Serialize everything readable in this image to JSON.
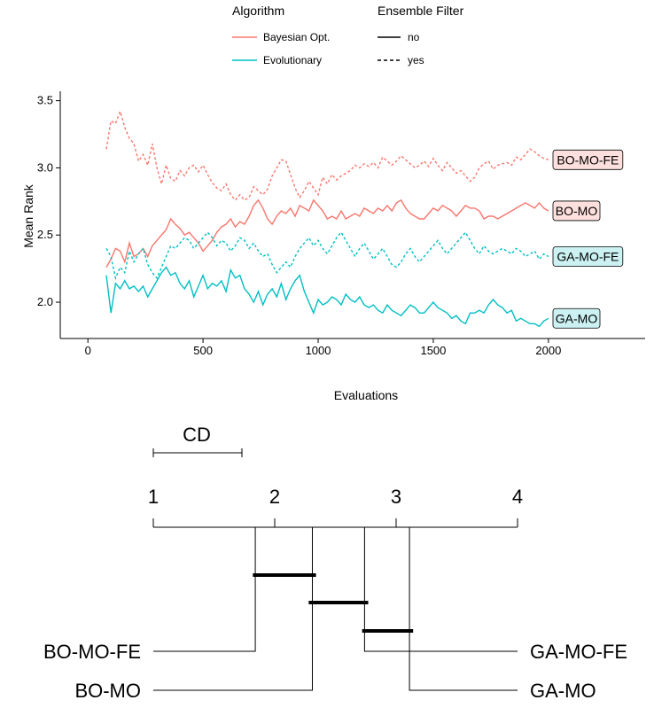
{
  "chart_data": [
    {
      "type": "line",
      "xlabel": "Evaluations",
      "ylabel": "Mean Rank",
      "xlim": [
        -120,
        2420
      ],
      "ylim": [
        1.73,
        3.57
      ],
      "x_ticks": [
        0,
        500,
        1000,
        1500,
        2000
      ],
      "y_ticks": [
        2.0,
        2.5,
        3.0,
        3.5
      ],
      "x_tick_labels": [
        "0",
        "500",
        "1000",
        "1500",
        "2000"
      ],
      "y_tick_labels": [
        "2.0",
        "2.5",
        "3.0",
        "3.5"
      ],
      "grid": false,
      "legend": {
        "placement": "top",
        "groups": [
          {
            "title": "Algorithm",
            "entries": [
              "Bayesian Opt.",
              "Evolutionary"
            ]
          },
          {
            "title": "Ensemble Filter",
            "entries": [
              "no",
              "yes"
            ]
          }
        ]
      },
      "colors": {
        "bayesian": "#F8766D",
        "evolutionary": "#00BFC4",
        "bayesian_fill": "#FDE0DD",
        "evolutionary_fill": "#CCF1F2"
      },
      "series": [
        {
          "name": "BO-MO-FE",
          "algorithm": "Bayesian Opt.",
          "ensemble_filter": "yes",
          "x": [
            80,
            100,
            120,
            140,
            160,
            180,
            200,
            220,
            240,
            260,
            280,
            300,
            320,
            340,
            360,
            380,
            400,
            420,
            440,
            460,
            480,
            500,
            520,
            540,
            560,
            580,
            600,
            620,
            640,
            660,
            680,
            700,
            720,
            740,
            760,
            780,
            800,
            820,
            840,
            860,
            880,
            900,
            920,
            940,
            960,
            980,
            1000,
            1020,
            1040,
            1060,
            1080,
            1100,
            1120,
            1140,
            1160,
            1180,
            1200,
            1220,
            1240,
            1260,
            1280,
            1300,
            1320,
            1340,
            1360,
            1380,
            1400,
            1420,
            1440,
            1460,
            1480,
            1500,
            1520,
            1540,
            1560,
            1580,
            1600,
            1620,
            1640,
            1660,
            1680,
            1700,
            1720,
            1740,
            1760,
            1780,
            1800,
            1820,
            1840,
            1860,
            1880,
            1900,
            1920,
            1940,
            1960,
            1980,
            2000
          ],
          "y": [
            3.14,
            3.35,
            3.33,
            3.42,
            3.3,
            3.22,
            3.18,
            3.05,
            3.1,
            3.02,
            3.18,
            3.0,
            2.88,
            3.02,
            2.92,
            2.9,
            2.98,
            2.94,
            3.0,
            3.02,
            2.97,
            3.02,
            2.95,
            2.89,
            2.85,
            2.83,
            2.88,
            2.8,
            2.76,
            2.8,
            2.76,
            2.78,
            2.86,
            2.83,
            2.8,
            2.84,
            2.94,
            3.0,
            3.06,
            3.05,
            2.95,
            2.85,
            2.78,
            2.83,
            2.9,
            2.85,
            2.8,
            2.93,
            2.88,
            2.95,
            2.91,
            2.94,
            2.96,
            2.98,
            3.02,
            3.0,
            3.03,
            3.01,
            3.04,
            3.0,
            3.08,
            3.05,
            3.02,
            3.05,
            3.09,
            3.06,
            3.03,
            3.0,
            3.02,
            3.05,
            3.01,
            3.07,
            3.02,
            2.98,
            3.04,
            3.0,
            2.96,
            2.98,
            2.94,
            2.9,
            2.93,
            3.0,
            3.03,
            3.05,
            2.99,
            3.02,
            3.03,
            3.04,
            3.02,
            3.08,
            3.06,
            3.1,
            3.14,
            3.12,
            3.09,
            3.07,
            3.06
          ]
        },
        {
          "name": "BO-MO",
          "algorithm": "Bayesian Opt.",
          "ensemble_filter": "no",
          "x": [
            80,
            100,
            120,
            140,
            160,
            180,
            200,
            220,
            240,
            260,
            280,
            300,
            320,
            340,
            360,
            380,
            400,
            420,
            440,
            460,
            480,
            500,
            520,
            540,
            560,
            580,
            600,
            620,
            640,
            660,
            680,
            700,
            720,
            740,
            760,
            780,
            800,
            820,
            840,
            860,
            880,
            900,
            920,
            940,
            960,
            980,
            1000,
            1020,
            1040,
            1060,
            1080,
            1100,
            1120,
            1140,
            1160,
            1180,
            1200,
            1220,
            1240,
            1260,
            1280,
            1300,
            1320,
            1340,
            1360,
            1380,
            1400,
            1420,
            1440,
            1460,
            1480,
            1500,
            1520,
            1540,
            1560,
            1580,
            1600,
            1620,
            1640,
            1660,
            1680,
            1700,
            1720,
            1740,
            1760,
            1780,
            1800,
            1820,
            1840,
            1860,
            1880,
            1900,
            1920,
            1940,
            1960,
            1980,
            2000
          ],
          "y": [
            2.26,
            2.32,
            2.4,
            2.38,
            2.3,
            2.44,
            2.34,
            2.36,
            2.4,
            2.34,
            2.42,
            2.46,
            2.5,
            2.54,
            2.62,
            2.58,
            2.55,
            2.5,
            2.52,
            2.48,
            2.44,
            2.38,
            2.42,
            2.46,
            2.52,
            2.56,
            2.58,
            2.62,
            2.56,
            2.6,
            2.58,
            2.64,
            2.72,
            2.76,
            2.7,
            2.62,
            2.58,
            2.64,
            2.68,
            2.66,
            2.7,
            2.64,
            2.72,
            2.7,
            2.68,
            2.76,
            2.72,
            2.68,
            2.62,
            2.64,
            2.62,
            2.68,
            2.62,
            2.64,
            2.66,
            2.64,
            2.7,
            2.68,
            2.66,
            2.7,
            2.68,
            2.72,
            2.68,
            2.74,
            2.76,
            2.7,
            2.66,
            2.64,
            2.62,
            2.62,
            2.66,
            2.7,
            2.68,
            2.72,
            2.7,
            2.68,
            2.64,
            2.68,
            2.72,
            2.7,
            2.7,
            2.68,
            2.62,
            2.64,
            2.64,
            2.62,
            2.64,
            2.66,
            2.68,
            2.7,
            2.72,
            2.74,
            2.72,
            2.7,
            2.74,
            2.7,
            2.68
          ]
        },
        {
          "name": "GA-MO-FE",
          "algorithm": "Evolutionary",
          "ensemble_filter": "yes",
          "x": [
            80,
            100,
            120,
            140,
            160,
            180,
            200,
            220,
            240,
            260,
            280,
            300,
            320,
            340,
            360,
            380,
            400,
            420,
            440,
            460,
            480,
            500,
            520,
            540,
            560,
            580,
            600,
            620,
            640,
            660,
            680,
            700,
            720,
            740,
            760,
            780,
            800,
            820,
            840,
            860,
            880,
            900,
            920,
            940,
            960,
            980,
            1000,
            1020,
            1040,
            1060,
            1080,
            1100,
            1120,
            1140,
            1160,
            1180,
            1200,
            1220,
            1240,
            1260,
            1280,
            1300,
            1320,
            1340,
            1360,
            1380,
            1400,
            1420,
            1440,
            1460,
            1480,
            1500,
            1520,
            1540,
            1560,
            1580,
            1600,
            1620,
            1640,
            1660,
            1680,
            1700,
            1720,
            1740,
            1760,
            1780,
            1800,
            1820,
            1840,
            1860,
            1880,
            1900,
            1920,
            1940,
            1960,
            1980,
            2000
          ],
          "y": [
            2.4,
            2.34,
            2.18,
            2.26,
            2.22,
            2.38,
            2.3,
            2.36,
            2.4,
            2.28,
            2.22,
            2.18,
            2.26,
            2.34,
            2.42,
            2.4,
            2.44,
            2.48,
            2.46,
            2.4,
            2.44,
            2.48,
            2.52,
            2.48,
            2.42,
            2.46,
            2.44,
            2.38,
            2.42,
            2.48,
            2.46,
            2.4,
            2.44,
            2.38,
            2.34,
            2.36,
            2.28,
            2.22,
            2.26,
            2.3,
            2.26,
            2.34,
            2.4,
            2.44,
            2.48,
            2.42,
            2.46,
            2.4,
            2.36,
            2.42,
            2.48,
            2.52,
            2.46,
            2.4,
            2.34,
            2.4,
            2.44,
            2.38,
            2.32,
            2.36,
            2.4,
            2.34,
            2.28,
            2.26,
            2.3,
            2.36,
            2.4,
            2.34,
            2.3,
            2.34,
            2.38,
            2.42,
            2.46,
            2.4,
            2.36,
            2.4,
            2.44,
            2.48,
            2.52,
            2.46,
            2.4,
            2.36,
            2.42,
            2.38,
            2.36,
            2.38,
            2.4,
            2.38,
            2.36,
            2.4,
            2.38,
            2.34,
            2.36,
            2.38,
            2.32,
            2.36,
            2.34
          ]
        },
        {
          "name": "GA-MO",
          "algorithm": "Evolutionary",
          "ensemble_filter": "no",
          "x": [
            80,
            100,
            120,
            140,
            160,
            180,
            200,
            220,
            240,
            260,
            280,
            300,
            320,
            340,
            360,
            380,
            400,
            420,
            440,
            460,
            480,
            500,
            520,
            540,
            560,
            580,
            600,
            620,
            640,
            660,
            680,
            700,
            720,
            740,
            760,
            780,
            800,
            820,
            840,
            860,
            880,
            900,
            920,
            940,
            960,
            980,
            1000,
            1020,
            1040,
            1060,
            1080,
            1100,
            1120,
            1140,
            1160,
            1180,
            1200,
            1220,
            1240,
            1260,
            1280,
            1300,
            1320,
            1340,
            1360,
            1380,
            1400,
            1420,
            1440,
            1460,
            1480,
            1500,
            1520,
            1540,
            1560,
            1580,
            1600,
            1620,
            1640,
            1660,
            1680,
            1700,
            1720,
            1740,
            1760,
            1780,
            1800,
            1820,
            1840,
            1860,
            1880,
            1900,
            1920,
            1940,
            1960,
            1980,
            2000
          ],
          "y": [
            2.2,
            1.92,
            2.14,
            2.1,
            2.16,
            2.1,
            2.12,
            2.08,
            2.12,
            2.04,
            2.1,
            2.16,
            2.22,
            2.26,
            2.2,
            2.22,
            2.14,
            2.1,
            2.16,
            2.04,
            2.12,
            2.2,
            2.1,
            2.14,
            2.12,
            2.16,
            2.08,
            2.24,
            2.18,
            2.2,
            2.1,
            2.06,
            2.0,
            2.08,
            1.98,
            2.06,
            2.1,
            2.04,
            2.14,
            2.02,
            2.1,
            2.16,
            2.2,
            2.08,
            2.0,
            1.92,
            2.02,
            1.98,
            2.0,
            2.04,
            2.02,
            1.98,
            2.06,
            2.02,
            2.0,
            2.04,
            1.98,
            1.96,
            1.98,
            1.94,
            1.92,
            1.98,
            1.94,
            1.92,
            1.9,
            1.94,
            1.98,
            1.96,
            1.92,
            1.92,
            1.96,
            2.0,
            1.96,
            1.94,
            1.92,
            1.88,
            1.9,
            1.86,
            1.84,
            1.92,
            1.92,
            1.94,
            1.92,
            1.98,
            2.02,
            1.98,
            1.96,
            1.92,
            1.94,
            1.86,
            1.88,
            1.86,
            1.84,
            1.84,
            1.82,
            1.86,
            1.88
          ]
        }
      ]
    },
    {
      "type": "critical-difference",
      "axis_ticks": [
        1,
        2,
        3,
        4
      ],
      "axis_tick_labels": [
        "1",
        "2",
        "3",
        "4"
      ],
      "cd_label": "CD",
      "cd_value": 0.73,
      "ranks": [
        {
          "name": "BO-MO-FE",
          "rank": 1.84,
          "side": "left"
        },
        {
          "name": "BO-MO",
          "rank": 2.31,
          "side": "left"
        },
        {
          "name": "GA-MO-FE",
          "rank": 2.74,
          "side": "right"
        },
        {
          "name": "GA-MO",
          "rank": 3.11,
          "side": "right"
        }
      ],
      "cliques": [
        [
          1.82,
          2.34
        ],
        [
          2.28,
          2.77
        ],
        [
          2.72,
          3.14
        ]
      ]
    }
  ]
}
